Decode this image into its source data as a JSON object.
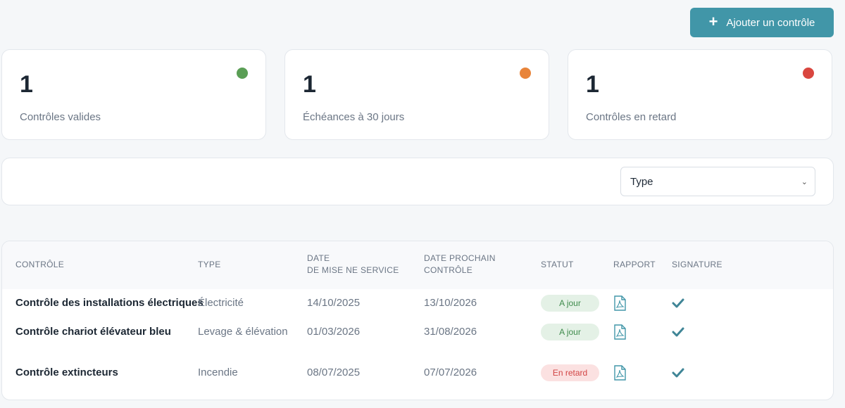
{
  "add_button": {
    "label": "Ajouter un contrôle",
    "icon": "plus-icon"
  },
  "stats": [
    {
      "value": "1",
      "label": "Contrôles valides",
      "color": "#5a9e55"
    },
    {
      "value": "1",
      "label": "Échéances à 30 jours",
      "color": "#e8843a"
    },
    {
      "value": "1",
      "label": "Contrôles en retard",
      "color": "#d9463f"
    }
  ],
  "filter": {
    "type_select": "Type"
  },
  "table": {
    "headers": {
      "controle": "CONTRÔLE",
      "type": "TYPE",
      "date_service_1": "DATE",
      "date_service_2": "DE MISE NE SERVICE",
      "date_next_1": "DATE PROCHAIN",
      "date_next_2": "CONTRÔLE",
      "statut": "STATUT",
      "rapport": "RAPPORT",
      "signature": "SIGNATURE"
    },
    "rows": [
      {
        "name": "Contrôle des installations électriques",
        "type": "Électricité",
        "date_service": "14/10/2025",
        "date_next": "13/10/2026",
        "status": "A jour",
        "status_kind": "ok"
      },
      {
        "name": "Contrôle chariot élévateur bleu",
        "type": "Levage & élévation",
        "date_service": "01/03/2026",
        "date_next": "31/08/2026",
        "status": "A jour",
        "status_kind": "ok"
      },
      {
        "name": "Contrôle extincteurs",
        "type": "Incendie",
        "date_service": "08/07/2025",
        "date_next": "07/07/2026",
        "status": "En retard",
        "status_kind": "late"
      }
    ],
    "colors": {
      "accent": "#4196a8"
    }
  }
}
